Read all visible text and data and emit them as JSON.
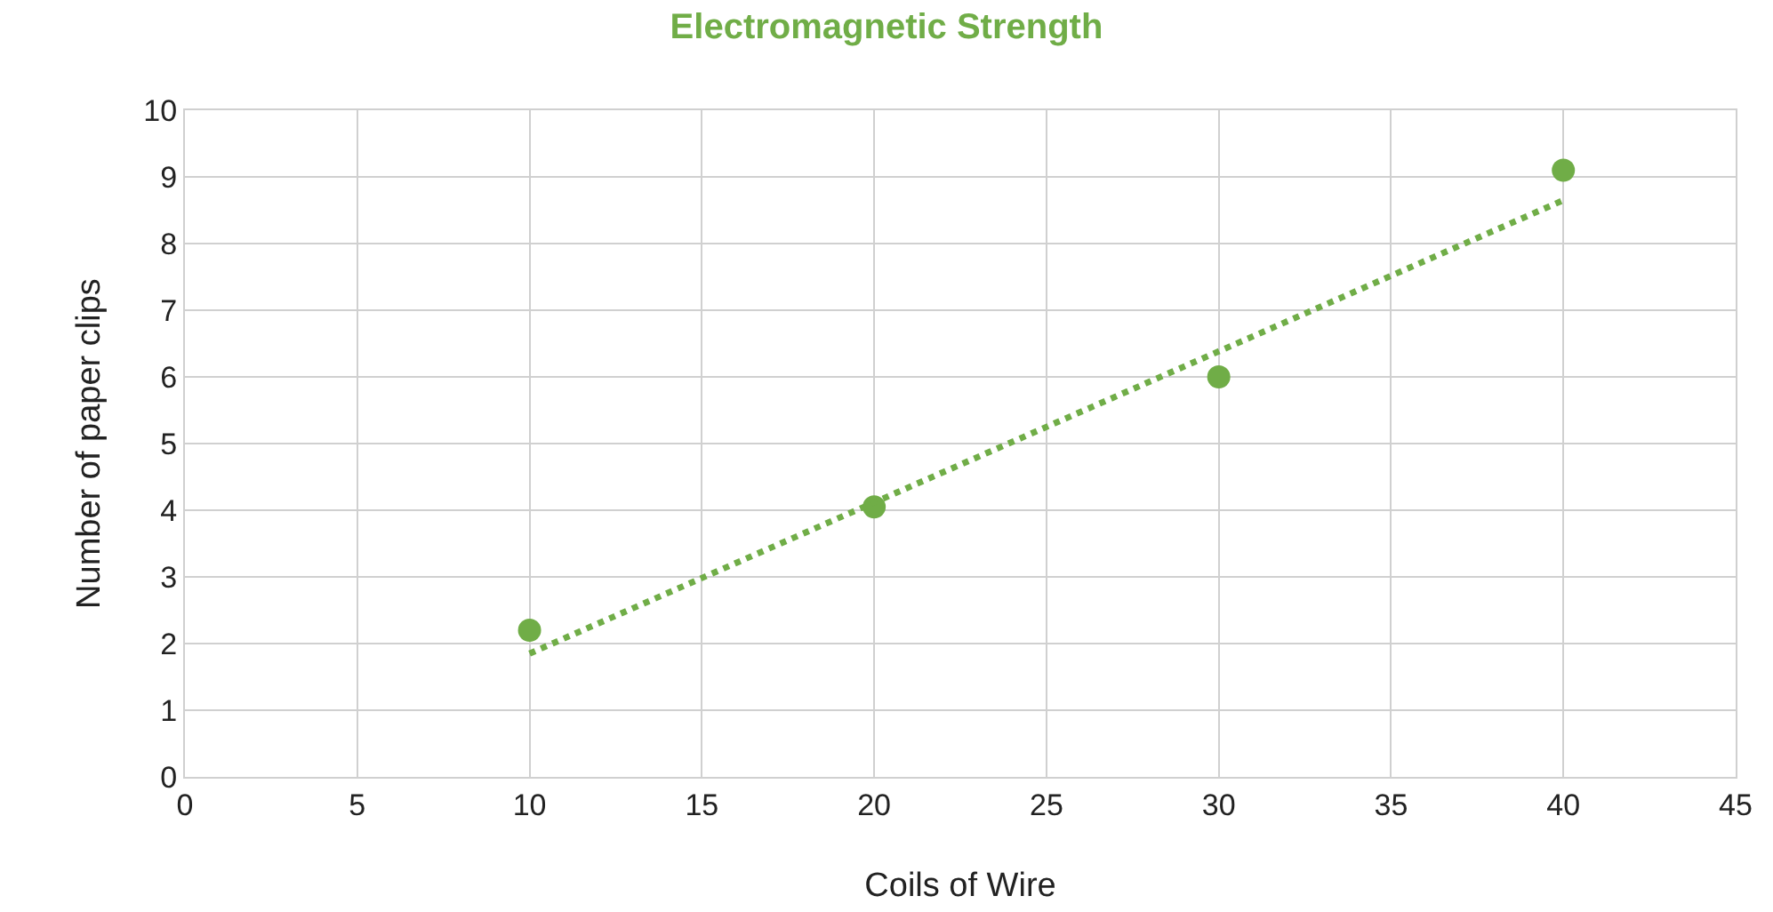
{
  "chart_data": {
    "type": "scatter",
    "title": "Electromagnetic Strength",
    "xlabel": "Coils of Wire",
    "ylabel": "Number of paper clips",
    "marker": "circle",
    "grid": true,
    "xlim": [
      0,
      45
    ],
    "xticks": [
      0,
      5,
      10,
      15,
      20,
      25,
      30,
      35,
      40,
      45
    ],
    "ylim": [
      0,
      10
    ],
    "yticks": [
      0,
      1,
      2,
      3,
      4,
      5,
      6,
      7,
      8,
      9,
      10
    ],
    "series": [
      {
        "color": "#70ad47",
        "x": [
          10,
          20,
          30,
          40
        ],
        "values": [
          2.2,
          4.05,
          6.0,
          9.1
        ]
      },
      {
        "type": "line",
        "marker": "none",
        "line_style": "dotted",
        "color": "#70ad47",
        "x": [
          10,
          40
        ],
        "values": [
          1.85,
          8.65
        ]
      }
    ]
  }
}
